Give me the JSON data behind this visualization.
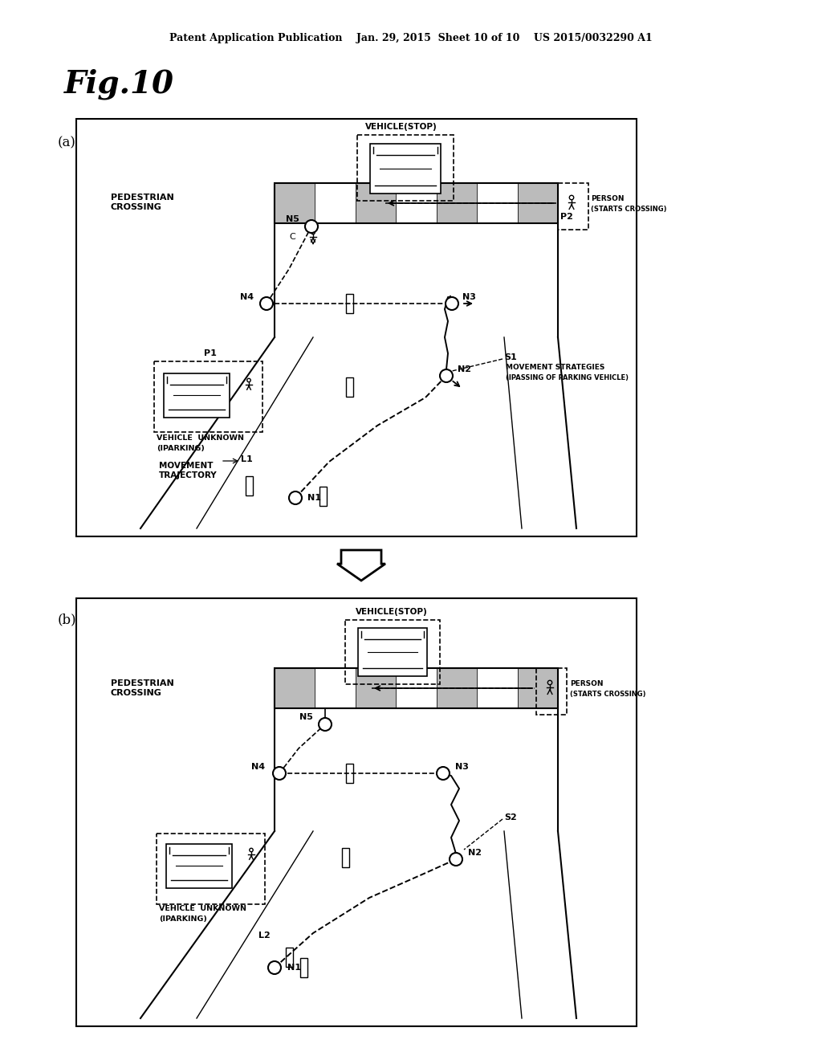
{
  "bg_color": "#ffffff",
  "header_text": "Patent Application Publication    Jan. 29, 2015  Sheet 10 of 10    US 2015/0032290 A1",
  "fig_title": "Fig.10",
  "panel_a_label": "(a)",
  "panel_b_label": "(b)"
}
